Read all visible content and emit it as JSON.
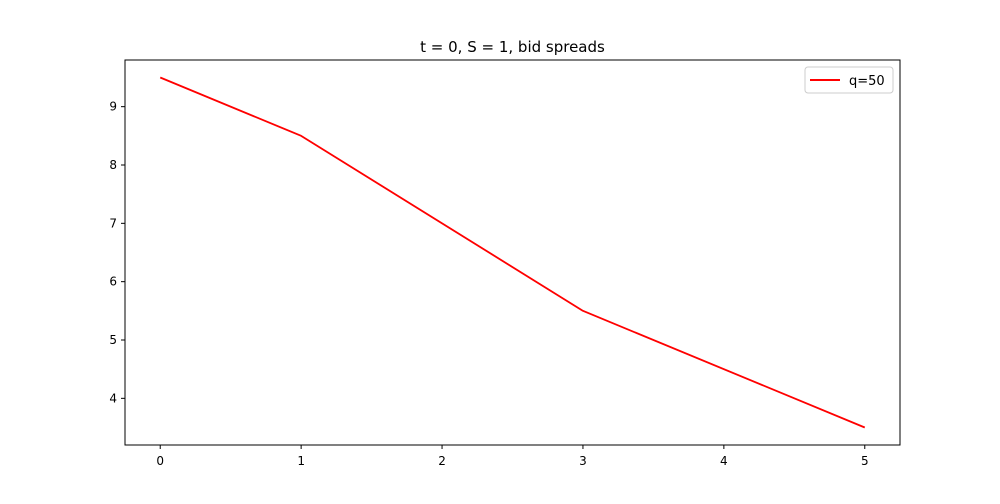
{
  "chart_data": {
    "type": "line",
    "title": "t = 0, S = 1, bid spreads",
    "xlabel": "",
    "ylabel": "",
    "x": [
      0,
      1,
      3,
      5
    ],
    "series": [
      {
        "name": "q=50",
        "color": "#ff0000",
        "values": [
          9.5,
          8.5,
          5.5,
          3.5
        ]
      }
    ],
    "xlim": [
      -0.25,
      5.25
    ],
    "ylim": [
      3.2,
      9.8
    ],
    "xticks": [
      0,
      1,
      2,
      3,
      4,
      5
    ],
    "yticks": [
      4,
      5,
      6,
      7,
      8,
      9
    ],
    "grid": false,
    "legend_position": "top-right"
  }
}
